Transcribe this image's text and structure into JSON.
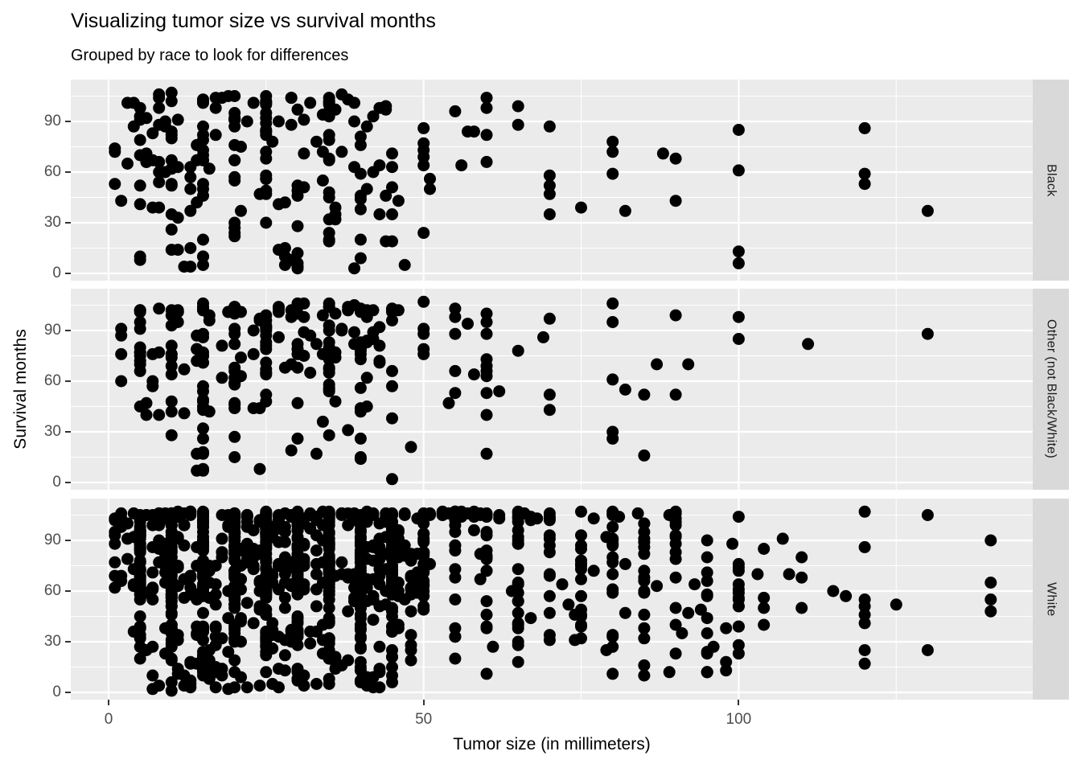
{
  "theme": {
    "background": "#FFFFFF",
    "panel_bg": "#EBEBEB",
    "strip_bg": "#D9D9D9",
    "gridline": "#FFFFFF",
    "axis_text": "#4D4D4D",
    "tick_mark": "#333333",
    "strip_text": "#1A1A1A",
    "title_text": "#000000"
  },
  "chart_data": {
    "type": "scatter",
    "title": "Visualizing tumor size vs survival months",
    "subtitle": "Grouped by race to look for differences",
    "xlabel": "Tumor size (in millimeters)",
    "ylabel": "Survival months",
    "x_ticks": [
      0,
      50,
      100
    ],
    "y_ticks": [
      0,
      30,
      60,
      90
    ],
    "x_minor_gridlines": [
      25,
      75,
      125
    ],
    "y_minor_gridlines": [
      15,
      45,
      75,
      105
    ],
    "xlim": [
      -6,
      147
    ],
    "ylim": [
      -4.8,
      114.8
    ],
    "grid": "on",
    "legend": "none",
    "point_color": "#000000",
    "facet_variable": "race",
    "sampling_seed": 13,
    "note": "Point clouds are dense; clusters give sampled density regions (x in mm, y in months) matching the screenshot, points list individually readable dots.",
    "facets": [
      {
        "name": "Black",
        "clusters": [
          {
            "n": 140,
            "x": [
              1,
              45
            ],
            "y": [
              40,
              103
            ],
            "snap5_prob": 0.45,
            "ybias": 1.2
          },
          {
            "n": 38,
            "x": [
              4,
              45
            ],
            "y": [
              8,
              40
            ],
            "snap5_prob": 0.45,
            "ybias": 1
          },
          {
            "n": 9,
            "x": [
              8,
              40
            ],
            "y": [
              2,
              8
            ],
            "snap5_prob": 0.4,
            "ybias": 1
          },
          {
            "n": 22,
            "x": [
              7,
              42
            ],
            "y": [
              100,
              107
            ],
            "snap5_prob": 0.4,
            "ybias": 1
          }
        ],
        "points": [
          [
            44,
            19
          ],
          [
            46,
            43
          ],
          [
            47,
            5
          ],
          [
            50,
            86
          ],
          [
            50,
            77
          ],
          [
            50,
            73
          ],
          [
            50,
            69
          ],
          [
            50,
            64
          ],
          [
            50,
            24
          ],
          [
            51,
            56
          ],
          [
            51,
            50
          ],
          [
            55,
            96
          ],
          [
            56,
            64
          ],
          [
            57,
            84
          ],
          [
            58,
            84
          ],
          [
            60,
            104
          ],
          [
            60,
            98
          ],
          [
            60,
            82
          ],
          [
            60,
            66
          ],
          [
            65,
            99
          ],
          [
            65,
            88
          ],
          [
            70,
            87
          ],
          [
            70,
            58
          ],
          [
            70,
            52
          ],
          [
            70,
            47
          ],
          [
            70,
            35
          ],
          [
            75,
            39
          ],
          [
            80,
            78
          ],
          [
            80,
            72
          ],
          [
            80,
            59
          ],
          [
            82,
            37
          ],
          [
            88,
            71
          ],
          [
            90,
            68
          ],
          [
            90,
            43
          ],
          [
            100,
            85
          ],
          [
            100,
            61
          ],
          [
            100,
            13
          ],
          [
            100,
            6
          ],
          [
            120,
            86
          ],
          [
            120,
            59
          ],
          [
            120,
            53
          ],
          [
            130,
            37
          ]
        ]
      },
      {
        "name": "Other (not Black/White)",
        "clusters": [
          {
            "n": 150,
            "x": [
              2,
              45
            ],
            "y": [
              55,
              104
            ],
            "snap5_prob": 0.45,
            "ybias": 1.15
          },
          {
            "n": 36,
            "x": [
              5,
              45
            ],
            "y": [
              25,
              55
            ],
            "snap5_prob": 0.45,
            "ybias": 1
          },
          {
            "n": 12,
            "x": [
              8,
              42
            ],
            "y": [
              2,
              25
            ],
            "snap5_prob": 0.4,
            "ybias": 1
          },
          {
            "n": 25,
            "x": [
              8,
              45
            ],
            "y": [
              101,
              107
            ],
            "snap5_prob": 0.4,
            "ybias": 1
          }
        ],
        "points": [
          [
            2,
            91
          ],
          [
            45,
            2
          ],
          [
            46,
            102
          ],
          [
            48,
            21
          ],
          [
            50,
            107
          ],
          [
            50,
            91
          ],
          [
            50,
            88
          ],
          [
            50,
            79
          ],
          [
            50,
            76
          ],
          [
            54,
            47
          ],
          [
            55,
            103
          ],
          [
            55,
            98
          ],
          [
            55,
            88
          ],
          [
            55,
            66
          ],
          [
            55,
            53
          ],
          [
            57,
            94
          ],
          [
            58,
            64
          ],
          [
            60,
            100
          ],
          [
            60,
            95
          ],
          [
            60,
            88
          ],
          [
            60,
            73
          ],
          [
            60,
            69
          ],
          [
            60,
            66
          ],
          [
            60,
            63
          ],
          [
            60,
            53
          ],
          [
            60,
            40
          ],
          [
            60,
            17
          ],
          [
            62,
            54
          ],
          [
            65,
            78
          ],
          [
            69,
            86
          ],
          [
            70,
            97
          ],
          [
            70,
            52
          ],
          [
            70,
            43
          ],
          [
            80,
            106
          ],
          [
            80,
            95
          ],
          [
            80,
            61
          ],
          [
            80,
            30
          ],
          [
            80,
            26
          ],
          [
            82,
            55
          ],
          [
            85,
            52
          ],
          [
            85,
            16
          ],
          [
            87,
            70
          ],
          [
            90,
            99
          ],
          [
            90,
            52
          ],
          [
            92,
            70
          ],
          [
            100,
            98
          ],
          [
            100,
            85
          ],
          [
            111,
            82
          ],
          [
            130,
            88
          ]
        ]
      },
      {
        "name": "White",
        "clusters": [
          {
            "n": 500,
            "x": [
              1,
              50
            ],
            "y": [
              55,
              107
            ],
            "snap5_prob": 0.5,
            "ybias": 1.3
          },
          {
            "n": 205,
            "x": [
              3,
              49
            ],
            "y": [
              34,
              80
            ],
            "snap5_prob": 0.5,
            "ybias": 1
          },
          {
            "n": 110,
            "x": [
              5,
              48
            ],
            "y": [
              12,
              42
            ],
            "snap5_prob": 0.45,
            "ybias": 1
          },
          {
            "n": 48,
            "x": [
              7,
              46
            ],
            "y": [
              1,
              14
            ],
            "snap5_prob": 0.4,
            "ybias": 1
          },
          {
            "n": 185,
            "x": [
              50,
              101
            ],
            "y": [
              8,
              107
            ],
            "snap5_prob": 0.8,
            "ybias": 1.2
          },
          {
            "n": 90,
            "x": [
              6,
              60
            ],
            "y": [
              104,
              107
            ],
            "snap5_prob": 0.35,
            "ybias": 1
          },
          {
            "n": 22,
            "x": [
              62,
              92
            ],
            "y": [
              102,
              107
            ],
            "snap5_prob": 0.75,
            "ybias": 1
          }
        ],
        "points": [
          [
            103,
            70
          ],
          [
            104,
            85
          ],
          [
            104,
            56
          ],
          [
            104,
            50
          ],
          [
            104,
            40
          ],
          [
            107,
            91
          ],
          [
            108,
            70
          ],
          [
            110,
            80
          ],
          [
            110,
            68
          ],
          [
            110,
            50
          ],
          [
            115,
            60
          ],
          [
            117,
            57
          ],
          [
            120,
            107
          ],
          [
            120,
            86
          ],
          [
            120,
            55
          ],
          [
            120,
            51
          ],
          [
            120,
            46
          ],
          [
            120,
            41
          ],
          [
            120,
            25
          ],
          [
            120,
            17
          ],
          [
            125,
            52
          ],
          [
            130,
            105
          ],
          [
            130,
            25
          ],
          [
            140,
            90
          ],
          [
            140,
            65
          ],
          [
            140,
            55
          ],
          [
            140,
            48
          ]
        ]
      }
    ]
  }
}
